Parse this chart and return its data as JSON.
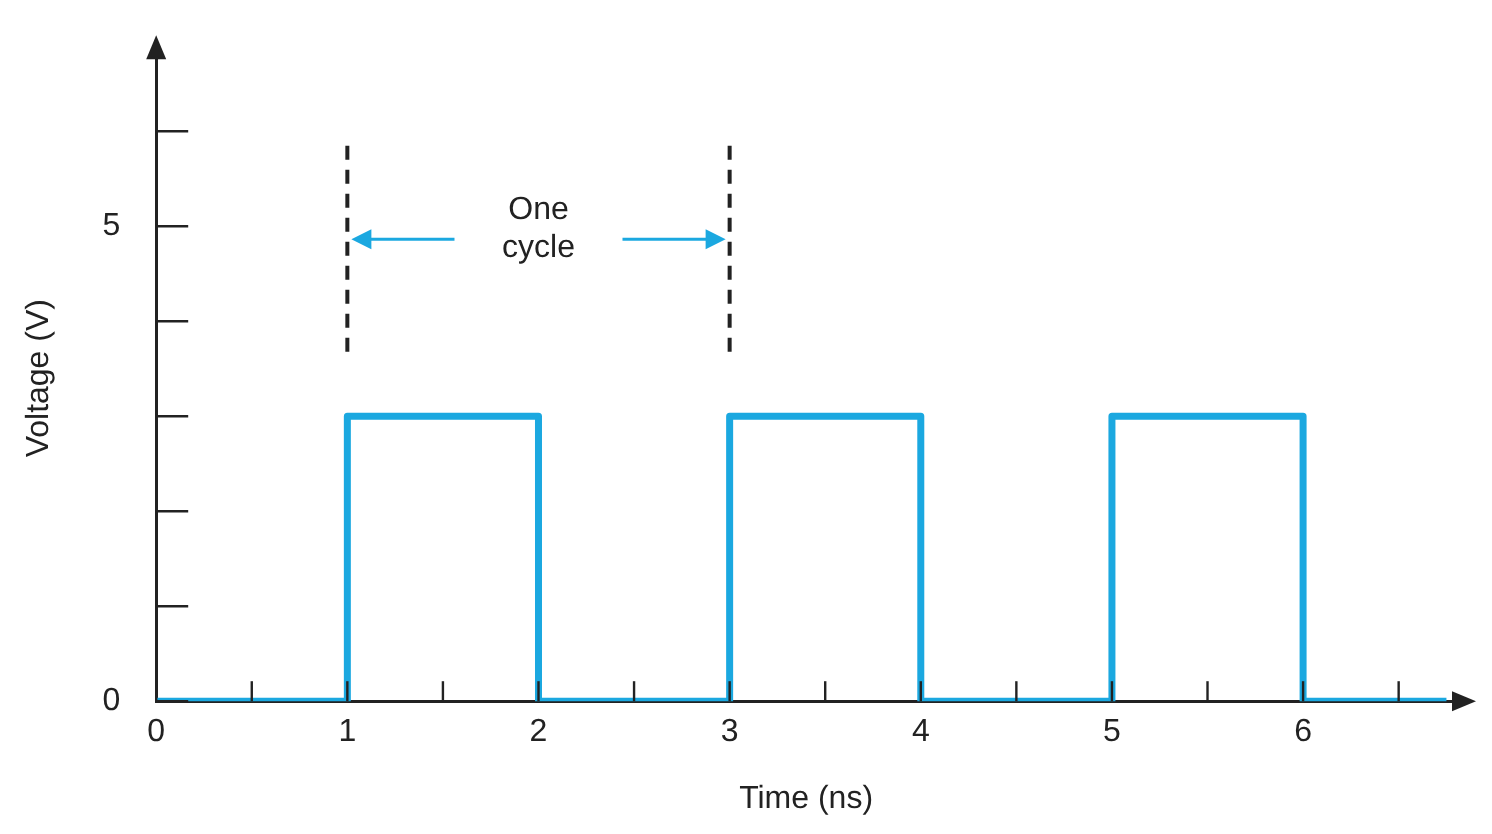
{
  "chart_data": {
    "type": "step",
    "xlabel": "Time (ns)",
    "ylabel": "Voltage (V)",
    "x": [
      0,
      1,
      2,
      3,
      4,
      5,
      6,
      6.75
    ],
    "series": [
      {
        "color": "#1ba8e0",
        "values": [
          0,
          3,
          0,
          3,
          0,
          3,
          0,
          0
        ]
      }
    ],
    "xlim": [
      0,
      6.8
    ],
    "ylim": [
      0,
      6.8
    ],
    "xticks": [
      0,
      {
        "value": 0.5,
        "label": null
      },
      1,
      {
        "value": 1.5,
        "label": null
      },
      2,
      {
        "value": 2.5,
        "label": null
      },
      3,
      {
        "value": 3.5,
        "label": null
      },
      4,
      {
        "value": 4.5,
        "label": null
      },
      5,
      {
        "value": 5.5,
        "label": null
      },
      6,
      {
        "value": 6.5,
        "label": null
      }
    ],
    "yticks": [
      0,
      {
        "value": 1,
        "label": null
      },
      {
        "value": 2,
        "label": null
      },
      {
        "value": 3,
        "label": null
      },
      {
        "value": 4,
        "label": null
      },
      5,
      {
        "value": 6,
        "label": null
      }
    ],
    "ref_lines": [
      {
        "axis": "x",
        "value": 1,
        "line_style": "dashed",
        "color": "#222222"
      },
      {
        "axis": "x",
        "value": 3,
        "line_style": "dashed",
        "color": "#222222"
      }
    ],
    "annotations": [
      "One cycle"
    ],
    "grid": false,
    "legend": false,
    "marker": "none"
  }
}
